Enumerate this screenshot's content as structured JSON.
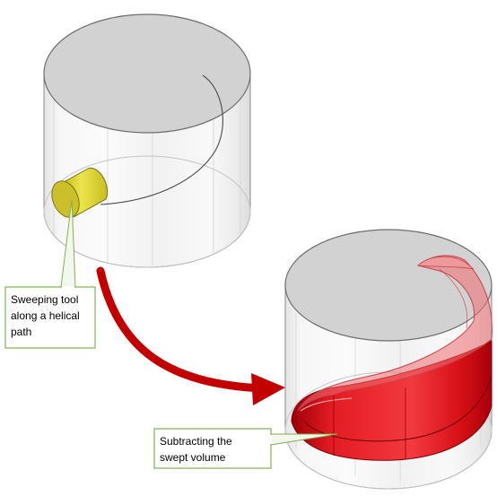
{
  "callouts": {
    "sweeping_tool": {
      "lines": [
        "Sweeping tool",
        "along a helical",
        "path"
      ]
    },
    "subtracting": {
      "lines": [
        "Subtracting the",
        "swept volume"
      ]
    }
  },
  "colors": {
    "callout_border": "#7fb24c",
    "arrow": "#c20000",
    "tool_yellow": "#e2d83a",
    "swept_red": "#e0141b",
    "cylinder_top": "#d2d2d2",
    "cylinder_outline": "#7a7a7a"
  }
}
